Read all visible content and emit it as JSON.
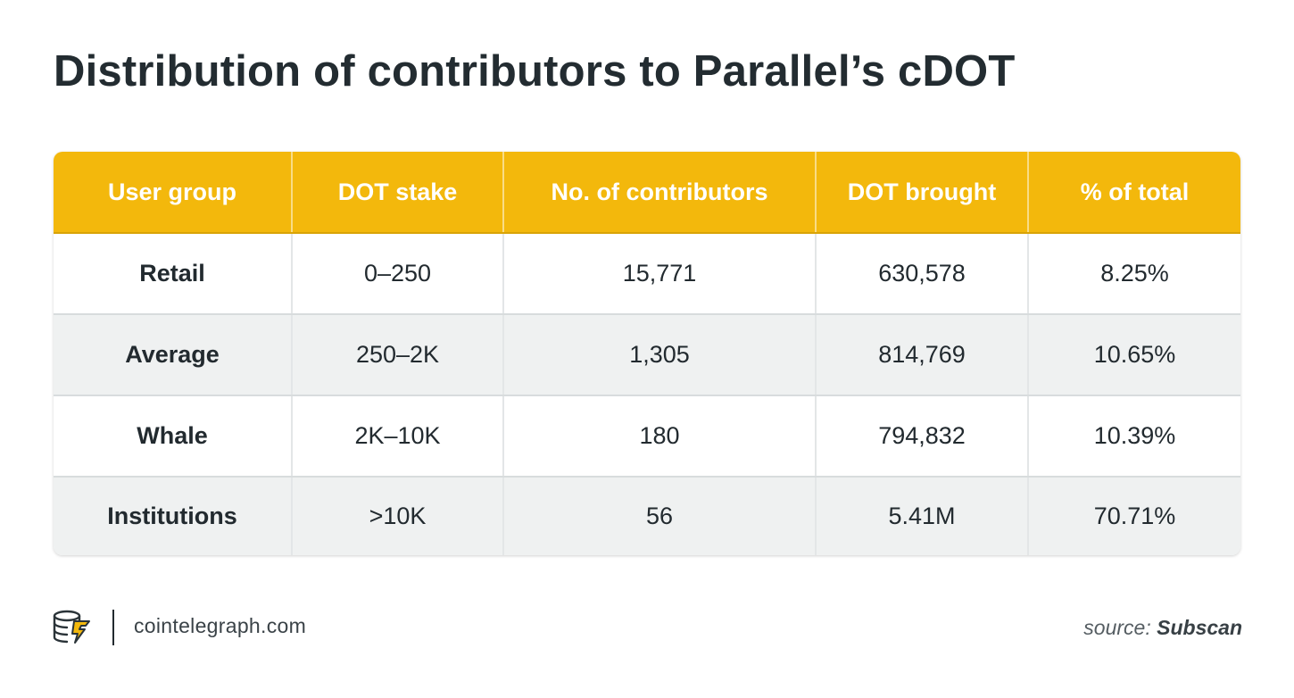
{
  "title": "Distribution of contributors to Parallel’s cDOT",
  "chart_data": {
    "type": "table",
    "title": "Distribution of contributors to Parallel’s cDOT",
    "columns": [
      "User group",
      "DOT stake",
      "No. of contributors",
      "DOT brought",
      "% of total"
    ],
    "rows": [
      [
        "Retail",
        "0–250",
        "15,771",
        "630,578",
        "8.25%"
      ],
      [
        "Average",
        "250–2K",
        "1,305",
        "814,769",
        "10.65%"
      ],
      [
        "Whale",
        "2K–10K",
        "180",
        "794,832",
        "10.39%"
      ],
      [
        "Institutions",
        ">10K",
        "56",
        "5.41M",
        "70.71%"
      ]
    ]
  },
  "footer": {
    "logo_icon": "cointelegraph-logo-icon",
    "site": "cointelegraph.com",
    "source_label": "source:",
    "source_name": "Subscan"
  },
  "colors": {
    "header_bg": "#f3b80c",
    "title": "#232c31",
    "row_alt": "#eff1f1"
  }
}
